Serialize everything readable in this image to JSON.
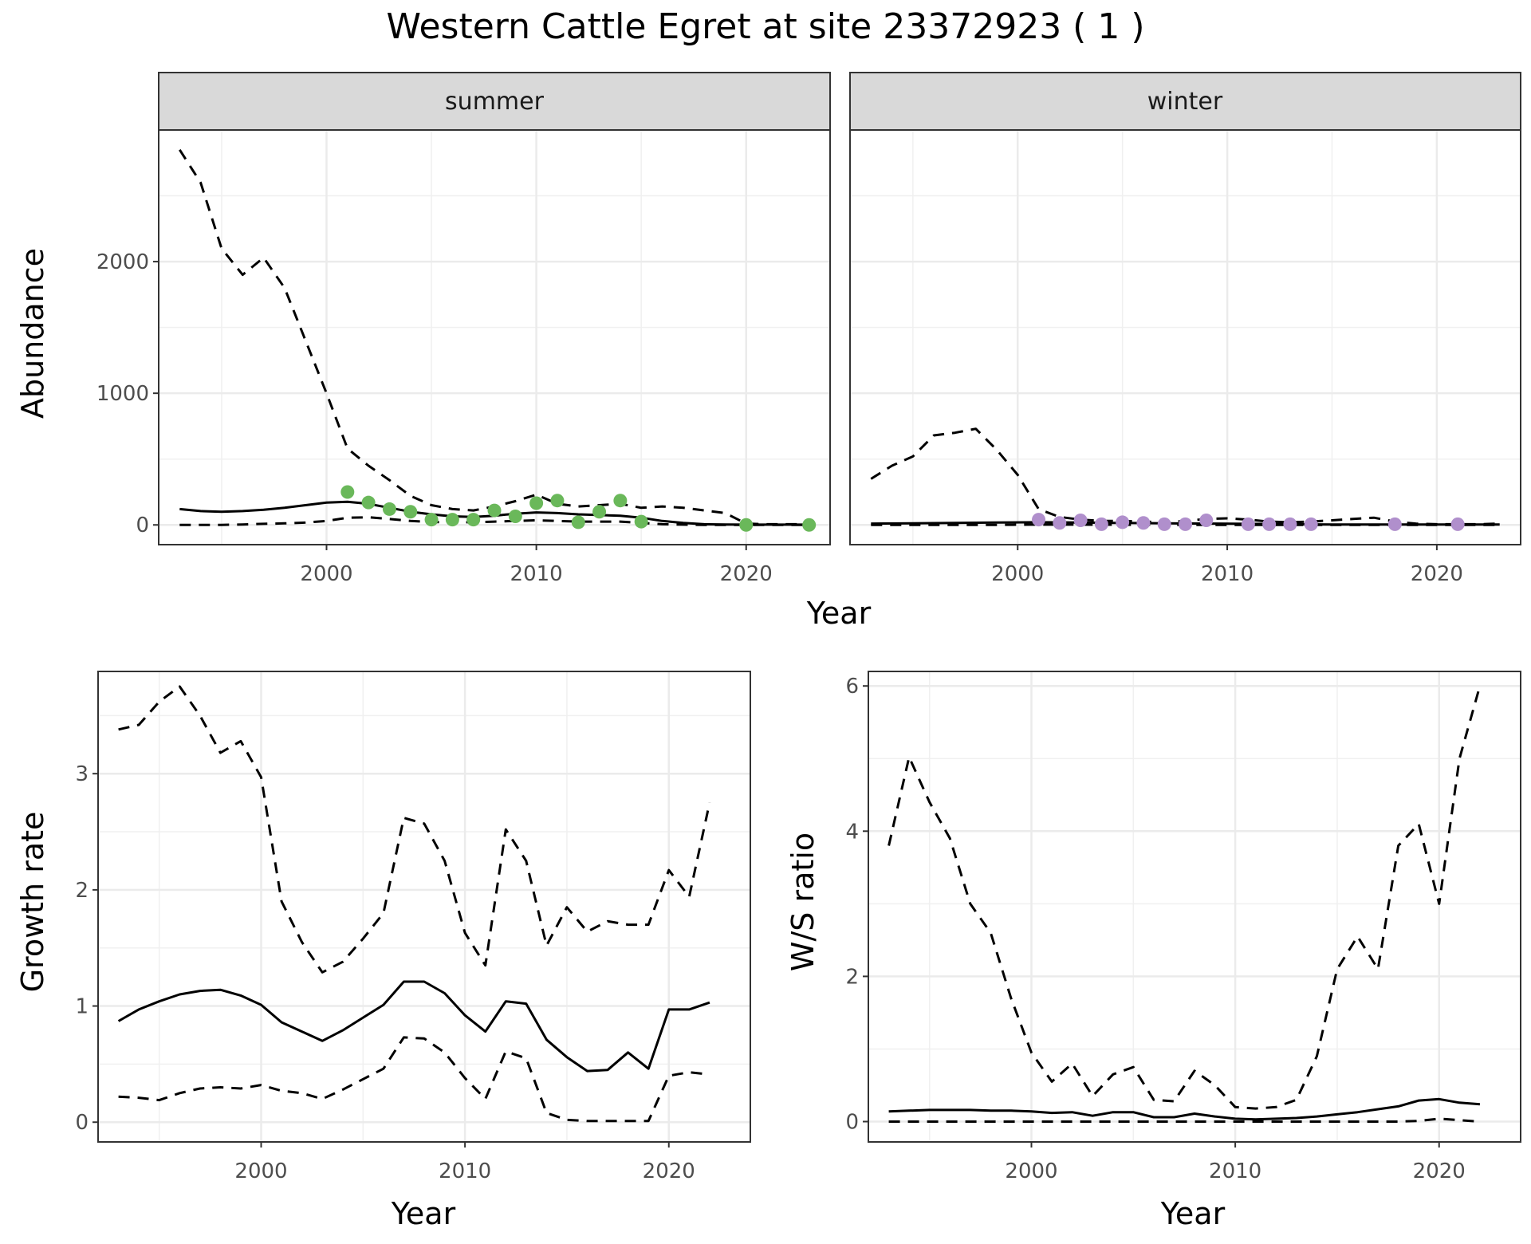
{
  "title": "Western Cattle Egret at site 23372923 ( 1 )",
  "chart_data": [
    {
      "type": "line",
      "panel": "abundance-summer",
      "strip": "summer",
      "xlabel": "",
      "ylabel": "Abundance",
      "xlim": [
        1992,
        2024
      ],
      "ylim": [
        -150,
        3000
      ],
      "xticks": [
        2000,
        2010,
        2020
      ],
      "yticks": [
        0,
        1000,
        2000
      ],
      "point_color": "#6ab85a",
      "series": [
        {
          "style": "solid",
          "x": [
            1993,
            1994,
            1995,
            1996,
            1997,
            1998,
            1999,
            2000,
            2001,
            2002,
            2003,
            2004,
            2005,
            2006,
            2007,
            2008,
            2009,
            2010,
            2011,
            2012,
            2013,
            2014,
            2015,
            2016,
            2017,
            2018,
            2019,
            2020,
            2021,
            2022,
            2023
          ],
          "y": [
            120,
            105,
            100,
            105,
            115,
            130,
            150,
            170,
            175,
            160,
            130,
            100,
            80,
            65,
            60,
            70,
            85,
            95,
            90,
            80,
            75,
            70,
            55,
            30,
            15,
            5,
            3,
            2,
            2,
            2,
            2
          ]
        },
        {
          "style": "dashed",
          "x": [
            1993,
            1994,
            1995,
            1996,
            1997,
            1998,
            1999,
            2000,
            2001,
            2002,
            2003,
            2004,
            2005,
            2006,
            2007,
            2008,
            2009,
            2010,
            2011,
            2012,
            2013,
            2014,
            2015,
            2016,
            2017,
            2018,
            2019,
            2020,
            2021,
            2022,
            2023
          ],
          "y": [
            2850,
            2600,
            2100,
            1900,
            2030,
            1800,
            1400,
            1000,
            580,
            450,
            340,
            220,
            150,
            120,
            110,
            140,
            180,
            230,
            160,
            140,
            150,
            160,
            130,
            140,
            130,
            110,
            90,
            10,
            5,
            5,
            5
          ]
        },
        {
          "style": "dashed",
          "x": [
            1993,
            1994,
            1995,
            1996,
            1997,
            1998,
            1999,
            2000,
            2001,
            2002,
            2003,
            2004,
            2005,
            2006,
            2007,
            2008,
            2009,
            2010,
            2011,
            2012,
            2013,
            2014,
            2015,
            2016,
            2017,
            2018,
            2019,
            2020,
            2021,
            2022,
            2023
          ],
          "y": [
            0,
            0,
            0,
            3,
            8,
            12,
            18,
            30,
            55,
            58,
            45,
            30,
            22,
            20,
            20,
            25,
            30,
            35,
            30,
            25,
            25,
            25,
            15,
            5,
            2,
            0,
            0,
            0,
            0,
            0,
            0
          ]
        }
      ],
      "points": {
        "x": [
          2001,
          2002,
          2003,
          2004,
          2005,
          2006,
          2007,
          2008,
          2009,
          2010,
          2011,
          2012,
          2013,
          2014,
          2015,
          2020,
          2023
        ],
        "y": [
          250,
          170,
          120,
          100,
          40,
          40,
          40,
          110,
          65,
          165,
          185,
          20,
          100,
          185,
          25,
          0,
          0
        ]
      }
    },
    {
      "type": "line",
      "panel": "abundance-winter",
      "strip": "winter",
      "xlabel": "",
      "ylabel": "",
      "xlim": [
        1992,
        2024
      ],
      "ylim": [
        -150,
        3000
      ],
      "xticks": [
        2000,
        2010,
        2020
      ],
      "yticks": [
        0,
        1000,
        2000
      ],
      "point_color": "#b08fcc",
      "series": [
        {
          "style": "solid",
          "x": [
            1993,
            1995,
            1997,
            1999,
            2001,
            2003,
            2005,
            2007,
            2009,
            2011,
            2013,
            2015,
            2017,
            2019,
            2021,
            2023
          ],
          "y": [
            10,
            12,
            15,
            18,
            20,
            18,
            15,
            12,
            10,
            8,
            5,
            3,
            3,
            3,
            3,
            3
          ]
        },
        {
          "style": "dashed",
          "x": [
            1993,
            1994,
            1995,
            1996,
            1997,
            1998,
            1999,
            2000,
            2001,
            2002,
            2003,
            2004,
            2005,
            2006,
            2007,
            2008,
            2009,
            2010,
            2011,
            2012,
            2013,
            2014,
            2015,
            2016,
            2017,
            2018,
            2019,
            2020,
            2021,
            2022,
            2023
          ],
          "y": [
            350,
            450,
            520,
            680,
            700,
            730,
            570,
            380,
            120,
            60,
            40,
            30,
            30,
            25,
            20,
            30,
            45,
            50,
            40,
            25,
            20,
            25,
            35,
            45,
            55,
            25,
            10,
            5,
            5,
            5,
            10
          ]
        },
        {
          "style": "dashed",
          "x": [
            1993,
            1995,
            1997,
            1999,
            2001,
            2003,
            2005,
            2007,
            2009,
            2011,
            2013,
            2015,
            2017,
            2019,
            2021,
            2023
          ],
          "y": [
            0,
            0,
            0,
            0,
            2,
            2,
            1,
            0,
            0,
            0,
            0,
            0,
            0,
            0,
            0,
            0
          ]
        }
      ],
      "points": {
        "x": [
          2001,
          2002,
          2003,
          2004,
          2005,
          2006,
          2007,
          2008,
          2009,
          2011,
          2012,
          2013,
          2014,
          2018,
          2021
        ],
        "y": [
          40,
          15,
          35,
          5,
          20,
          15,
          5,
          5,
          35,
          5,
          5,
          5,
          5,
          5,
          5
        ]
      }
    },
    {
      "type": "line",
      "panel": "growth-rate",
      "xlabel": "Year",
      "ylabel": "Growth rate",
      "xlim": [
        1992,
        2024
      ],
      "ylim": [
        -0.17,
        3.88
      ],
      "xticks": [
        2000,
        2010,
        2020
      ],
      "yticks": [
        0,
        1,
        2,
        3
      ],
      "series": [
        {
          "style": "solid",
          "x": [
            1993,
            1994,
            1995,
            1996,
            1997,
            1998,
            1999,
            2000,
            2001,
            2002,
            2003,
            2004,
            2005,
            2006,
            2007,
            2008,
            2009,
            2010,
            2011,
            2012,
            2013,
            2014,
            2015,
            2016,
            2017,
            2018,
            2019,
            2020,
            2021,
            2022
          ],
          "y": [
            0.87,
            0.97,
            1.04,
            1.1,
            1.13,
            1.14,
            1.09,
            1.01,
            0.86,
            0.78,
            0.7,
            0.79,
            0.9,
            1.01,
            1.21,
            1.21,
            1.11,
            0.92,
            0.78,
            1.04,
            1.02,
            0.71,
            0.56,
            0.44,
            0.45,
            0.6,
            0.46,
            0.97,
            0.97,
            1.03
          ]
        },
        {
          "style": "dashed",
          "x": [
            1993,
            1994,
            1995,
            1996,
            1997,
            1998,
            1999,
            2000,
            2001,
            2002,
            2003,
            2004,
            2005,
            2006,
            2007,
            2008,
            2009,
            2010,
            2011,
            2012,
            2013,
            2014,
            2015,
            2016,
            2017,
            2018,
            2019,
            2020,
            2021,
            2022
          ],
          "y": [
            3.38,
            3.42,
            3.62,
            3.75,
            3.5,
            3.18,
            3.28,
            2.97,
            1.9,
            1.55,
            1.29,
            1.38,
            1.58,
            1.8,
            2.62,
            2.57,
            2.25,
            1.63,
            1.35,
            2.52,
            2.25,
            1.52,
            1.85,
            1.64,
            1.73,
            1.7,
            1.7,
            2.17,
            1.94,
            2.75
          ]
        },
        {
          "style": "dashed",
          "x": [
            1993,
            1994,
            1995,
            1996,
            1997,
            1998,
            1999,
            2000,
            2001,
            2002,
            2003,
            2004,
            2005,
            2006,
            2007,
            2008,
            2009,
            2010,
            2011,
            2012,
            2013,
            2014,
            2015,
            2016,
            2017,
            2018,
            2019,
            2020,
            2021,
            2022
          ],
          "y": [
            0.22,
            0.21,
            0.19,
            0.25,
            0.29,
            0.3,
            0.29,
            0.32,
            0.27,
            0.25,
            0.2,
            0.28,
            0.37,
            0.46,
            0.73,
            0.72,
            0.6,
            0.38,
            0.2,
            0.61,
            0.55,
            0.08,
            0.02,
            0.01,
            0.01,
            0.01,
            0.01,
            0.4,
            0.43,
            0.41
          ]
        }
      ]
    },
    {
      "type": "line",
      "panel": "ws-ratio",
      "xlabel": "Year",
      "ylabel": "W/S ratio",
      "xlim": [
        1992,
        2024
      ],
      "ylim": [
        -0.28,
        6.2
      ],
      "xticks": [
        2000,
        2010,
        2020
      ],
      "yticks": [
        0,
        2,
        4,
        6
      ],
      "series": [
        {
          "style": "solid",
          "x": [
            1993,
            1994,
            1995,
            1996,
            1997,
            1998,
            1999,
            2000,
            2001,
            2002,
            2003,
            2004,
            2005,
            2006,
            2007,
            2008,
            2009,
            2010,
            2011,
            2012,
            2013,
            2014,
            2015,
            2016,
            2017,
            2018,
            2019,
            2020,
            2021,
            2022
          ],
          "y": [
            0.14,
            0.15,
            0.16,
            0.16,
            0.16,
            0.15,
            0.15,
            0.14,
            0.12,
            0.13,
            0.08,
            0.13,
            0.13,
            0.06,
            0.06,
            0.11,
            0.07,
            0.04,
            0.03,
            0.04,
            0.05,
            0.07,
            0.1,
            0.13,
            0.17,
            0.21,
            0.29,
            0.31,
            0.26,
            0.24
          ]
        },
        {
          "style": "dashed",
          "x": [
            1993,
            1994,
            1995,
            1996,
            1997,
            1998,
            1999,
            2000,
            2001,
            2002,
            2003,
            2004,
            2005,
            2006,
            2007,
            2008,
            2009,
            2010,
            2011,
            2012,
            2013,
            2014,
            2015,
            2016,
            2017,
            2018,
            2019,
            2020,
            2021,
            2022
          ],
          "y": [
            3.8,
            5.02,
            4.4,
            3.9,
            3.0,
            2.6,
            1.7,
            0.95,
            0.55,
            0.8,
            0.35,
            0.65,
            0.75,
            0.3,
            0.28,
            0.7,
            0.5,
            0.2,
            0.18,
            0.2,
            0.3,
            0.9,
            2.1,
            2.55,
            2.1,
            3.8,
            4.1,
            3.0,
            5.0,
            6.0
          ]
        },
        {
          "style": "dashed",
          "x": [
            1993,
            1994,
            1995,
            1996,
            1997,
            1998,
            1999,
            2000,
            2001,
            2002,
            2003,
            2004,
            2005,
            2006,
            2007,
            2008,
            2009,
            2010,
            2011,
            2012,
            2013,
            2014,
            2015,
            2016,
            2017,
            2018,
            2019,
            2020,
            2021,
            2022
          ],
          "y": [
            0,
            0,
            0,
            0,
            0,
            0,
            0,
            0,
            0,
            0,
            0,
            0,
            0,
            0,
            0,
            0,
            0,
            0,
            0,
            0,
            0,
            0,
            0,
            0,
            0,
            0,
            0.01,
            0.04,
            0.02,
            0
          ]
        }
      ]
    }
  ]
}
